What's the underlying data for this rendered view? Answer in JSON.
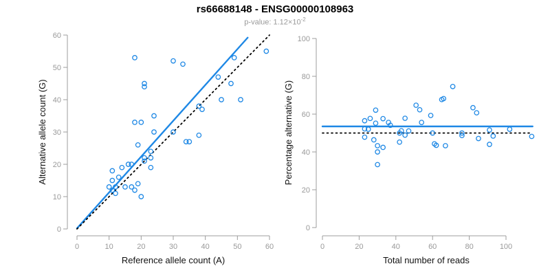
{
  "header": {
    "title": "rs66688148 - ENSG00000108963",
    "subtitle_base": "p-value: 1.12×10",
    "subtitle_exponent": "-2"
  },
  "colors": {
    "accent_blue": "#1E88E5",
    "dotted_line_black": "#000000",
    "axis_line_gray": "#9c9c9c",
    "tick_label_gray": "#999999",
    "axis_title_black": "#111111",
    "subtitle_gray": "#999999"
  },
  "chart_data": [
    {
      "type": "scatter",
      "panel": "left",
      "xlabel": "Reference allele count (A)",
      "ylabel": "Alternative allele count (G)",
      "xlim": [
        0,
        60
      ],
      "ylim": [
        0,
        60
      ],
      "xticks": [
        0,
        10,
        20,
        30,
        40,
        50,
        60
      ],
      "yticks": [
        0,
        10,
        20,
        30,
        40,
        50,
        60
      ],
      "grid": false,
      "legend": "none",
      "marker": "open-circle",
      "points": [
        [
          18,
          53
        ],
        [
          30,
          52
        ],
        [
          33,
          51
        ],
        [
          59,
          55
        ],
        [
          49,
          53
        ],
        [
          21,
          45
        ],
        [
          21,
          44
        ],
        [
          44,
          47
        ],
        [
          48,
          45
        ],
        [
          45,
          40
        ],
        [
          51,
          40
        ],
        [
          38,
          38
        ],
        [
          39,
          37
        ],
        [
          24,
          35
        ],
        [
          18,
          33
        ],
        [
          20,
          33
        ],
        [
          24,
          30
        ],
        [
          30,
          30
        ],
        [
          38,
          29
        ],
        [
          35,
          27
        ],
        [
          34,
          27
        ],
        [
          19,
          26
        ],
        [
          23,
          24
        ],
        [
          23,
          22
        ],
        [
          21,
          22
        ],
        [
          21,
          21
        ],
        [
          16,
          20
        ],
        [
          17,
          20
        ],
        [
          23,
          19
        ],
        [
          14,
          19
        ],
        [
          11,
          18
        ],
        [
          13,
          16
        ],
        [
          11,
          15
        ],
        [
          10,
          13
        ],
        [
          12,
          13
        ],
        [
          11,
          12
        ],
        [
          12,
          11
        ],
        [
          15,
          13
        ],
        [
          17,
          13
        ],
        [
          19,
          14
        ],
        [
          18,
          12
        ],
        [
          20,
          10
        ]
      ],
      "lines": [
        {
          "name": "fit-line",
          "style": "solid",
          "color": "accent_blue",
          "width": 2.4,
          "x1": 0,
          "y1": 0.2,
          "x2": 53.2,
          "y2": 59.2
        },
        {
          "name": "identity-line",
          "style": "dotted",
          "color": "dotted_line_black",
          "width": 1.8,
          "x1": 0,
          "y1": 0,
          "x2": 60,
          "y2": 60
        }
      ]
    },
    {
      "type": "scatter",
      "panel": "right",
      "xlabel": "Total number of reads",
      "ylabel": "Percentage alternative (G)",
      "xlim": [
        0,
        115
      ],
      "ylim": [
        0,
        100
      ],
      "xticks": [
        0,
        20,
        40,
        60,
        80,
        100
      ],
      "yticks": [
        0,
        20,
        40,
        60,
        80,
        100
      ],
      "grid": false,
      "legend": "none",
      "marker": "open-circle",
      "points": [
        [
          71,
          74.6
        ],
        [
          82,
          63.4
        ],
        [
          84,
          60.7
        ],
        [
          114,
          48.2
        ],
        [
          102,
          52.0
        ],
        [
          66,
          68.2
        ],
        [
          65,
          67.7
        ],
        [
          91,
          51.6
        ],
        [
          93,
          48.4
        ],
        [
          85,
          47.1
        ],
        [
          91,
          44.0
        ],
        [
          76,
          50.0
        ],
        [
          76,
          48.7
        ],
        [
          59,
          59.3
        ],
        [
          51,
          64.7
        ],
        [
          53,
          62.3
        ],
        [
          54,
          55.6
        ],
        [
          60,
          50.0
        ],
        [
          67,
          43.3
        ],
        [
          62,
          43.5
        ],
        [
          61,
          44.3
        ],
        [
          45,
          57.8
        ],
        [
          47,
          51.1
        ],
        [
          45,
          48.9
        ],
        [
          43,
          51.2
        ],
        [
          42,
          50.0
        ],
        [
          36,
          55.6
        ],
        [
          37,
          54.1
        ],
        [
          42,
          45.2
        ],
        [
          33,
          57.6
        ],
        [
          29,
          62.1
        ],
        [
          29,
          55.2
        ],
        [
          26,
          57.7
        ],
        [
          23,
          56.5
        ],
        [
          25,
          52.0
        ],
        [
          23,
          52.2
        ],
        [
          23,
          47.8
        ],
        [
          28,
          46.4
        ],
        [
          30,
          43.3
        ],
        [
          33,
          42.4
        ],
        [
          30,
          40.0
        ],
        [
          30,
          33.3
        ]
      ],
      "lines": [
        {
          "name": "mean-percentage-line",
          "style": "solid",
          "color": "accent_blue",
          "width": 2.4,
          "x1": 0,
          "y1": 53.5,
          "x2": 114.5,
          "y2": 53.5
        },
        {
          "name": "expected-50pct-line",
          "style": "dotted",
          "color": "dotted_line_black",
          "width": 1.8,
          "x1": 0,
          "y1": 50,
          "x2": 113,
          "y2": 50
        }
      ]
    }
  ]
}
